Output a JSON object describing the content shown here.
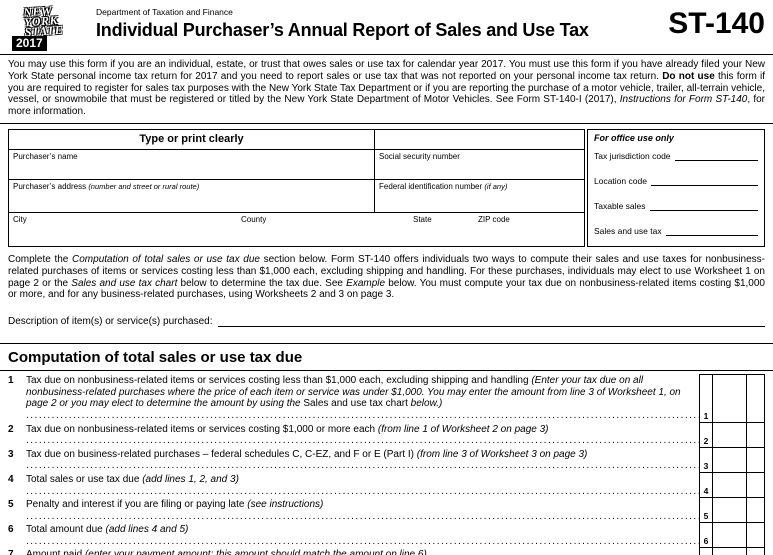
{
  "header": {
    "logo": {
      "line1": "NEW",
      "line2": "YORK",
      "line3": "STATE",
      "year": "2017"
    },
    "agency": "Department of Taxation and Finance",
    "title": "Individual Purchaser’s Annual Report of Sales and Use Tax",
    "form_number": "ST-140"
  },
  "intro": {
    "part1": "You may use this form if you are an individual, estate, or trust that owes sales or use tax for calendar year 2017. You must use this form if you have already filed your New York State personal income tax return for 2017 and you need to report sales or use tax that was not reported on your personal income tax return. ",
    "bold": "Do not use",
    "part2": " this form if you are required to register for sales tax purposes with the New York State Tax Department or if you are reporting the purchase of a motor vehicle, trailer, all-terrain vehicle, vessel, or snowmobile that must be registered or titled by the New York State Department of Motor Vehicles. See Form ST-140-I (2017), ",
    "italic": "Instructions for Form ST-140",
    "part3": ", for more information."
  },
  "purchaser_box": {
    "header": "Type or print clearly",
    "name_label": "Purchaser’s name",
    "ssn_label": "Social security number",
    "address_label": "Purchaser’s address",
    "address_note": "(number and street or rural route)",
    "fed_id_label": "Federal identification number",
    "fed_id_note": "(if any)",
    "city_label": "City",
    "county_label": "County",
    "state_label": "State",
    "zip_label": "ZIP code"
  },
  "office_box": {
    "title": "For office use only",
    "fields": [
      "Tax jurisdiction code",
      "Location code",
      "Taxable sales",
      "Sales and use tax"
    ]
  },
  "middle": {
    "part1": "Complete the ",
    "italic1": "Computation of total sales or use tax due",
    "part2": " section below. Form ST-140 offers individuals two ways to compute their sales and use taxes for nonbusiness-related purchases of items or services costing less than $1,000 each, excluding shipping and handling. For these purchases, individuals may elect to use Worksheet 1 on page 2 or the ",
    "italic2": "Sales and use tax chart",
    "part3": " below to determine the tax due. See ",
    "italic3": "Example",
    "part4": " below. You must compute your tax due on nonbusiness-related items costing $1,000 or more, and for any business-related purchases, using Worksheets 2 and 3 on page 3."
  },
  "description": {
    "label": "Description of item(s) or service(s) purchased:"
  },
  "computation": {
    "heading": "Computation of total sales or use tax due",
    "lines": [
      {
        "num": "1",
        "t1": "Tax due on nonbusiness-related items or services costing less than $1,000 each, excluding shipping and handling ",
        "i1": "(Enter your tax due on all nonbusiness-related purchases where the price of each item or service was under $1,000. You may enter the amount from line 3 of Worksheet 1, on page 2 or you may elect to determine the amount by using the ",
        "t2": "Sales and use tax chart",
        "i2": " below.)"
      },
      {
        "num": "2",
        "t1": "Tax due on nonbusiness-related items or services costing $1,000 or more each ",
        "i1": "(from line 1 of Worksheet 2 on page 3)"
      },
      {
        "num": "3",
        "t1": "Tax due on business-related purchases – federal schedules C, C-EZ, and F or E (Part I) ",
        "i1": "(from line 3 of Worksheet 3 on page 3)"
      },
      {
        "num": "4",
        "t1": "Total sales or use tax due ",
        "i1": "(add lines 1, 2, and 3)"
      },
      {
        "num": "5",
        "t1": "Penalty and interest if you are filing or paying late ",
        "i1": "(see instructions)"
      },
      {
        "num": "6",
        "t1": "Total amount due ",
        "i1": "(add lines 4 and 5)"
      },
      {
        "num": "7",
        "t1": "Amount paid ",
        "i1": "(enter your payment amount; this amount should match the amount on line 6)"
      }
    ]
  }
}
